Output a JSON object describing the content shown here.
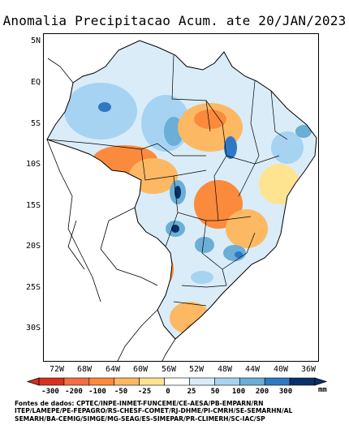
{
  "title": "Anomalia Precipitacao Acum. ate 20/JAN/2023",
  "lat_labels": [
    "5N",
    "EQ",
    "5S",
    "10S",
    "15S",
    "20S",
    "25S",
    "30S"
  ],
  "lon_labels": [
    "72W",
    "68W",
    "64W",
    "60W",
    "56W",
    "52W",
    "48W",
    "44W",
    "40W",
    "36W"
  ],
  "colorbar": {
    "labels": [
      "-300",
      "-200",
      "-100",
      "-50",
      "-25",
      "0",
      "25",
      "50",
      "100",
      "200",
      "300"
    ],
    "unit": "mm",
    "colors": [
      "#d7301f",
      "#f46d43",
      "#fb8a3c",
      "#fdb863",
      "#fee391",
      "#ffffff",
      "#d9ecf8",
      "#a6d3f2",
      "#6baed6",
      "#2f78c4",
      "#08306b"
    ]
  },
  "sources": [
    "Fontes de dados: CPTEC/INPE-INMET-FUNCEME/CE-AESA/PB-EMPARN/RN",
    "ITEP/LAMEPE/PE-FEPAGRO/RS-CHESF-COMET/RJ-DHME/PI-CMRH/SE-SEMARHN/AL",
    "SEMARH/BA-CEMIG/SIMGE/MG-SEAG/ES-SIMEPAR/PR-CLIMERH/SC-IAC/SP"
  ]
}
